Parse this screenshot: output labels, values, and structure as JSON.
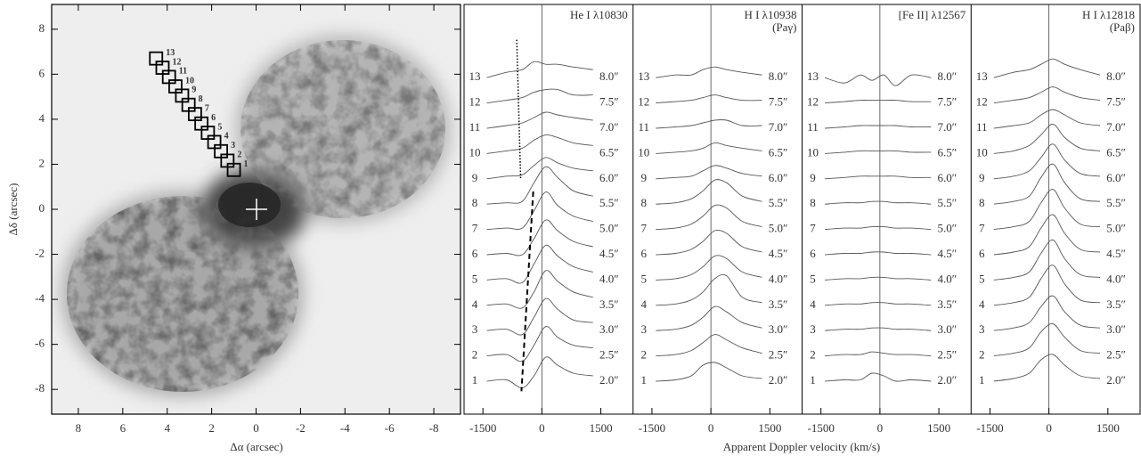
{
  "chart_data": [
    {
      "type": "image",
      "xlabel": "Δα (arcsec)",
      "ylabel": "Δδ (arcsec)",
      "xlim": [
        9.2,
        -9.2
      ],
      "ylim": [
        -9.1,
        9.1
      ],
      "xticks": [
        8,
        6,
        4,
        2,
        0,
        -2,
        -4,
        -6,
        -8
      ],
      "yticks": [
        -8,
        -6,
        -4,
        -2,
        0,
        2,
        4,
        6,
        8
      ],
      "apertures": {
        "labels": [
          "1",
          "2",
          "3",
          "4",
          "5",
          "6",
          "7",
          "8",
          "9",
          "10",
          "11",
          "12",
          "13"
        ],
        "x": [
          1.0,
          1.29,
          1.58,
          1.88,
          2.17,
          2.46,
          2.75,
          3.04,
          3.33,
          3.63,
          3.92,
          4.21,
          4.5
        ],
        "y": [
          1.75,
          2.16,
          2.58,
          2.99,
          3.4,
          3.81,
          4.23,
          4.64,
          5.05,
          5.46,
          5.88,
          6.29,
          6.7
        ]
      }
    },
    {
      "type": "spectra",
      "xlabel": "Apparent Doppler velocity (km/s)",
      "xlim": [
        -1980,
        2320
      ],
      "xticks": [
        -1500,
        0,
        1500
      ],
      "x": [
        -1400,
        -900,
        -500,
        -200,
        100,
        400,
        800,
        1300
      ],
      "rows": [
        1,
        2,
        3,
        4,
        5,
        6,
        7,
        8,
        9,
        10,
        11,
        12,
        13
      ],
      "offsets": [
        "2.0″",
        "2.5″",
        "3.0″",
        "3.5″",
        "4.0″",
        "4.5″",
        "5.0″",
        "5.5″",
        "6.0″",
        "6.5″",
        "7.0″",
        "7.5″",
        "8.0″"
      ],
      "panels": [
        {
          "title": "He I λ10830",
          "color": "#555555",
          "guides": [
            {
              "style": "dotted",
              "x": [
                -640,
                -540
              ],
              "rows": [
                14.5,
                9.0
              ]
            },
            {
              "style": "dashed",
              "x": [
                -220,
                -520
              ],
              "rows": [
                8.5,
                0.6
              ]
            }
          ],
          "spectra": [
            [
              0,
              0.05,
              -0.25,
              0.2,
              0.9,
              0.6,
              0.3,
              0.2
            ],
            [
              0,
              0.05,
              -0.2,
              0.4,
              1.1,
              0.7,
              0.4,
              0.3
            ],
            [
              0,
              0.05,
              -0.15,
              0.5,
              1.2,
              0.8,
              0.4,
              0.3
            ],
            [
              0,
              0.05,
              -0.1,
              0.5,
              1.3,
              0.9,
              0.5,
              0.3
            ],
            [
              0,
              0.05,
              -0.1,
              0.6,
              1.3,
              0.9,
              0.5,
              0.3
            ],
            [
              0,
              0.05,
              0,
              0.6,
              1.3,
              0.9,
              0.5,
              0.3
            ],
            [
              0,
              0.05,
              0.05,
              0.7,
              1.4,
              0.9,
              0.5,
              0.3
            ],
            [
              0,
              0.05,
              0.1,
              0.8,
              1.4,
              1.0,
              0.5,
              0.3
            ],
            [
              0,
              0.1,
              0.15,
              0.5,
              0.8,
              0.6,
              0.4,
              0.3
            ],
            [
              0,
              0.1,
              0.2,
              0.5,
              0.7,
              0.6,
              0.4,
              0.3
            ],
            [
              0,
              0.1,
              0.2,
              0.4,
              0.6,
              0.5,
              0.4,
              0.3
            ],
            [
              0,
              0.1,
              0.2,
              0.4,
              0.5,
              0.5,
              0.3,
              0.3
            ],
            [
              0,
              0.2,
              0.3,
              0.6,
              0.5,
              0.5,
              0.4,
              0.3
            ]
          ]
        },
        {
          "title": "H I λ10938",
          "subtitle": "(Paγ)",
          "color": "#555555",
          "spectra": [
            [
              0,
              0.05,
              0.2,
              0.6,
              0.7,
              0.5,
              0.2,
              0.1
            ],
            [
              0,
              0.05,
              0.2,
              0.5,
              0.8,
              0.6,
              0.3,
              0.1
            ],
            [
              0,
              0.05,
              0.2,
              0.5,
              0.9,
              0.7,
              0.3,
              0.1
            ],
            [
              0,
              0.05,
              0.2,
              0.5,
              1.0,
              1.1,
              0.3,
              0.1
            ],
            [
              0,
              0.05,
              0.2,
              0.5,
              0.9,
              0.8,
              0.3,
              0.1
            ],
            [
              0,
              0.05,
              0.2,
              0.5,
              0.9,
              0.8,
              0.3,
              0.1
            ],
            [
              0,
              0.05,
              0.2,
              0.5,
              0.9,
              0.8,
              0.3,
              0.1
            ],
            [
              0,
              0.05,
              0.2,
              0.5,
              0.9,
              0.8,
              0.3,
              0.1
            ],
            [
              0,
              0.05,
              0.1,
              0.3,
              0.5,
              0.4,
              0.2,
              0.1
            ],
            [
              0,
              0.05,
              0.1,
              0.2,
              0.4,
              0.3,
              0.2,
              0.1
            ],
            [
              0,
              0.05,
              0.1,
              0.2,
              0.3,
              0.3,
              0.1,
              0.1
            ],
            [
              0,
              0.05,
              0.1,
              0.2,
              0.3,
              0.2,
              0.1,
              0.1
            ],
            [
              0,
              0.1,
              0.1,
              0.3,
              0.4,
              0.3,
              0.2,
              0.1
            ]
          ]
        },
        {
          "title": "[Fe II] λ12567",
          "color": "#555555",
          "spectra": [
            [
              0,
              0.05,
              0.05,
              0.3,
              0.2,
              0,
              0.05,
              0
            ],
            [
              0,
              0.05,
              0.05,
              0.15,
              0.1,
              0.05,
              0.05,
              0
            ],
            [
              0,
              0.05,
              0.05,
              0.1,
              0.1,
              0.05,
              0.05,
              0
            ],
            [
              0,
              0.05,
              0.05,
              0.1,
              0.1,
              0.05,
              0.05,
              0
            ],
            [
              0,
              0.05,
              0.05,
              0.1,
              0.1,
              0.05,
              0.05,
              0
            ],
            [
              0,
              0.05,
              0.05,
              0.1,
              0.1,
              0.05,
              0.05,
              0
            ],
            [
              0,
              0.05,
              0.05,
              0.1,
              0.1,
              0.05,
              0.05,
              0
            ],
            [
              0,
              0.05,
              0.05,
              0.1,
              0.1,
              0.05,
              0.05,
              0
            ],
            [
              0,
              0.05,
              0.1,
              0.1,
              0.1,
              0.1,
              0.05,
              0.05
            ],
            [
              0,
              0.05,
              0.1,
              0.1,
              0.1,
              0.1,
              0.05,
              0.05
            ],
            [
              0,
              0.05,
              0.1,
              0.1,
              0.1,
              0.1,
              0.05,
              0.05
            ],
            [
              0,
              0.05,
              0.1,
              0.1,
              0.1,
              0.1,
              0.05,
              0.05
            ],
            [
              0,
              -0.2,
              0.1,
              -0.1,
              0.1,
              -0.3,
              0.1,
              0
            ]
          ]
        },
        {
          "title": "H I λ12818",
          "subtitle": "(Paβ)",
          "color": "#555555",
          "spectra": [
            [
              0,
              0.1,
              0.3,
              0.8,
              1.0,
              0.6,
              0.2,
              0.1
            ],
            [
              0,
              0.1,
              0.3,
              0.9,
              1.2,
              0.7,
              0.2,
              0.1
            ],
            [
              0,
              0.1,
              0.3,
              0.9,
              1.3,
              0.7,
              0.2,
              0.1
            ],
            [
              0,
              0.1,
              0.3,
              1.0,
              1.5,
              0.8,
              0.2,
              0.1
            ],
            [
              0,
              0.1,
              0.3,
              1.0,
              1.5,
              0.8,
              0.2,
              0.1
            ],
            [
              0,
              0.1,
              0.3,
              1.0,
              1.5,
              0.8,
              0.2,
              0.1
            ],
            [
              0,
              0.1,
              0.3,
              1.0,
              1.5,
              0.8,
              0.2,
              0.1
            ],
            [
              0,
              0.1,
              0.3,
              1.0,
              1.5,
              0.8,
              0.2,
              0.1
            ],
            [
              0,
              0.1,
              0.3,
              0.8,
              1.3,
              0.7,
              0.2,
              0.1
            ],
            [
              0,
              0.1,
              0.3,
              0.7,
              1.1,
              0.6,
              0.2,
              0.1
            ],
            [
              0,
              0.1,
              0.2,
              0.5,
              0.7,
              0.5,
              0.2,
              0.1
            ],
            [
              0,
              0.1,
              0.2,
              0.4,
              0.6,
              0.4,
              0.2,
              0.1
            ],
            [
              0,
              0.2,
              0.3,
              0.5,
              0.7,
              0.5,
              0.3,
              0.1
            ]
          ]
        }
      ]
    }
  ]
}
